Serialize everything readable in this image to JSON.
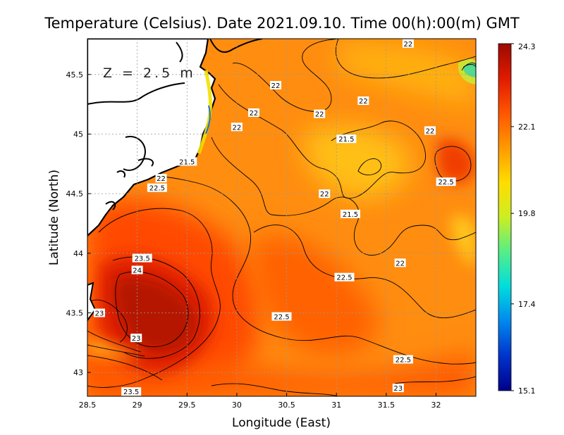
{
  "chart_data": {
    "type": "heatmap",
    "title": "Temperature (Celsius). Date 2021.09.10. Time 00(h):00(m)  GMT",
    "xlabel": "Longitude (East)",
    "ylabel": "Latitude (North)",
    "xlim": [
      28.5,
      32.4
    ],
    "ylim": [
      42.8,
      45.8
    ],
    "xticks": [
      "28.5",
      "29",
      "29.5",
      "30",
      "30.5",
      "31",
      "31.5",
      "32"
    ],
    "yticks": [
      "43",
      "43.5",
      "44",
      "44.5",
      "45",
      "45.5"
    ],
    "depth_label": "Z = 2.5 m",
    "grid": true,
    "colorbar": {
      "min": 15.1,
      "max": 24.3,
      "ticks": [
        "24.3",
        "22.1",
        "19.8",
        "17.4",
        "15.1"
      ],
      "colors": [
        "#00008b",
        "#0033cc",
        "#0088ee",
        "#00dddd",
        "#55ee88",
        "#ccee22",
        "#ffdd00",
        "#ff9900",
        "#ff5500",
        "#e01a00",
        "#9b0a00"
      ]
    },
    "contour_labels": [
      {
        "x": 31.72,
        "y": 45.76,
        "value": "22"
      },
      {
        "x": 30.39,
        "y": 45.41,
        "value": "22"
      },
      {
        "x": 31.27,
        "y": 45.28,
        "value": "22"
      },
      {
        "x": 30.17,
        "y": 45.18,
        "value": "22"
      },
      {
        "x": 30.83,
        "y": 45.17,
        "value": "22"
      },
      {
        "x": 30.0,
        "y": 45.06,
        "value": "22"
      },
      {
        "x": 31.94,
        "y": 45.03,
        "value": "22"
      },
      {
        "x": 31.1,
        "y": 44.96,
        "value": "21.5"
      },
      {
        "x": 29.5,
        "y": 44.77,
        "value": "21.5"
      },
      {
        "x": 29.24,
        "y": 44.63,
        "value": "22"
      },
      {
        "x": 29.2,
        "y": 44.55,
        "value": "22.5"
      },
      {
        "x": 32.1,
        "y": 44.6,
        "value": "22.5"
      },
      {
        "x": 30.88,
        "y": 44.5,
        "value": "22"
      },
      {
        "x": 31.14,
        "y": 44.33,
        "value": "21.5"
      },
      {
        "x": 29.05,
        "y": 43.96,
        "value": "23.5"
      },
      {
        "x": 29.0,
        "y": 43.86,
        "value": "24"
      },
      {
        "x": 31.64,
        "y": 43.92,
        "value": "22"
      },
      {
        "x": 31.08,
        "y": 43.8,
        "value": "22.5"
      },
      {
        "x": 28.62,
        "y": 43.5,
        "value": "23"
      },
      {
        "x": 30.45,
        "y": 43.47,
        "value": "22.5"
      },
      {
        "x": 28.99,
        "y": 43.29,
        "value": "23"
      },
      {
        "x": 31.67,
        "y": 43.11,
        "value": "22.5"
      },
      {
        "x": 31.62,
        "y": 42.87,
        "value": "23"
      },
      {
        "x": 28.94,
        "y": 42.84,
        "value": "23.5"
      }
    ]
  }
}
